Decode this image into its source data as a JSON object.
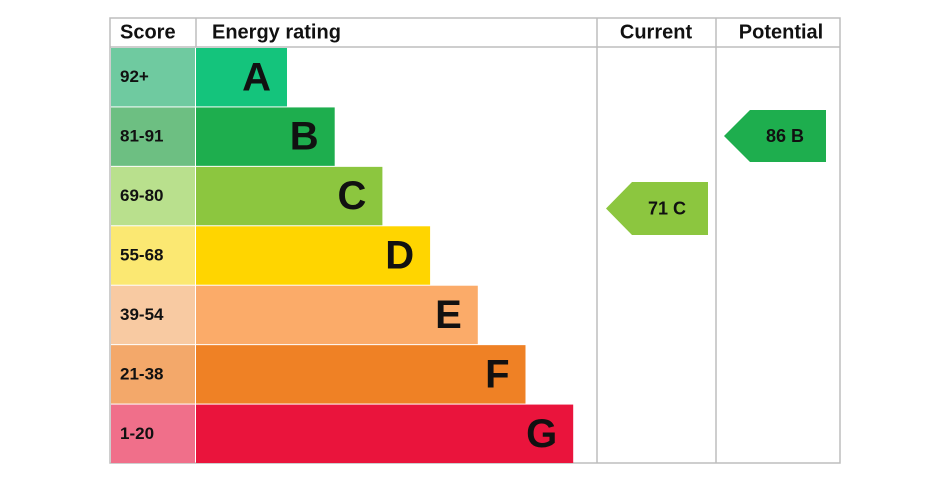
{
  "header": {
    "score": "Score",
    "rating": "Energy rating",
    "current": "Current",
    "potential": "Potential"
  },
  "bands": [
    {
      "score": "92+",
      "letter": "A",
      "color": "#14c47c",
      "score_color": "#6fcaa0"
    },
    {
      "score": "81-91",
      "letter": "B",
      "color": "#1eae4e",
      "score_color": "#6dbf82"
    },
    {
      "score": "69-80",
      "letter": "C",
      "color": "#8cc63f",
      "score_color": "#b9e08d"
    },
    {
      "score": "55-68",
      "letter": "D",
      "color": "#ffd500",
      "score_color": "#fbe872"
    },
    {
      "score": "39-54",
      "letter": "E",
      "color": "#fbab69",
      "score_color": "#f8caa2"
    },
    {
      "score": "21-38",
      "letter": "F",
      "color": "#ef8125",
      "score_color": "#f3a86a"
    },
    {
      "score": "1-20",
      "letter": "G",
      "color": "#ea143c",
      "score_color": "#f06f8a"
    }
  ],
  "current": {
    "label": "71 C",
    "color": "#8cc63f"
  },
  "potential": {
    "label": "86 B",
    "color": "#1eae4e"
  }
}
